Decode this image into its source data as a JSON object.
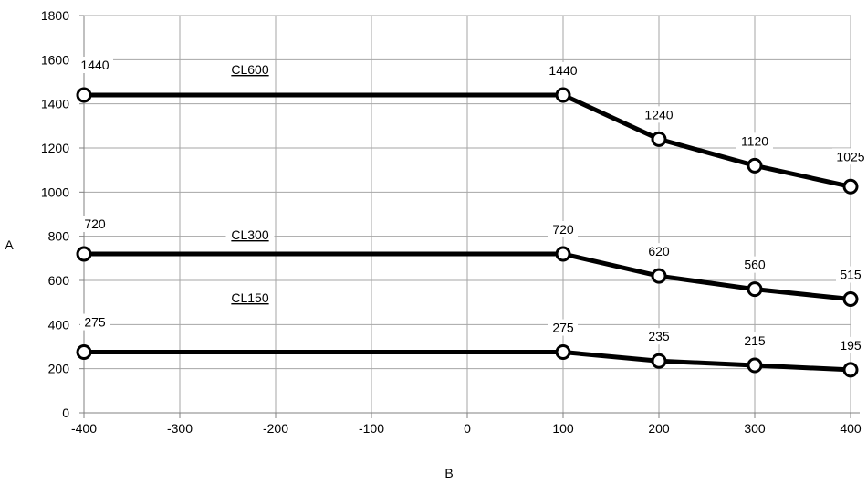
{
  "chart_data": {
    "type": "line",
    "xlabel": "B",
    "ylabel": "A",
    "xlim": [
      -400,
      400
    ],
    "ylim": [
      0,
      1800
    ],
    "x_ticks": [
      -400,
      -300,
      -200,
      -100,
      0,
      100,
      200,
      300,
      400
    ],
    "y_ticks": [
      0,
      200,
      400,
      600,
      800,
      1000,
      1200,
      1400,
      1600,
      1800
    ],
    "grid": true,
    "x": [
      -400,
      100,
      200,
      300,
      400
    ],
    "series": [
      {
        "name": "CL600",
        "values": [
          1440,
          1440,
          1240,
          1120,
          1025
        ],
        "labels": [
          "1440",
          "1440",
          "1240",
          "1120",
          "1025"
        ]
      },
      {
        "name": "CL300",
        "values": [
          720,
          720,
          620,
          560,
          515
        ],
        "labels": [
          "720",
          "720",
          "620",
          "560",
          "515"
        ]
      },
      {
        "name": "CL150",
        "values": [
          275,
          275,
          235,
          215,
          195
        ],
        "labels": [
          "275",
          "275",
          "235",
          "215",
          "195"
        ]
      }
    ]
  }
}
